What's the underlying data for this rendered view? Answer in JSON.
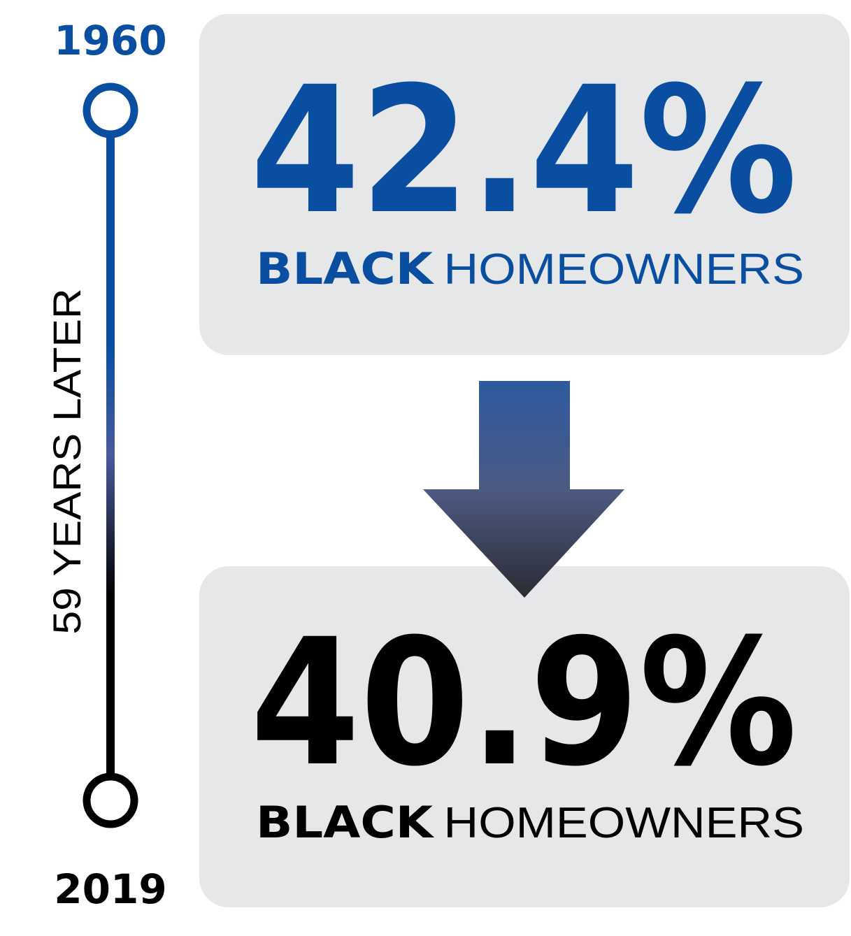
{
  "timeline": {
    "start": "1960",
    "end": "2019",
    "span": "59 YEARS LATER"
  },
  "panels": [
    {
      "value": "42.4%",
      "emphasis": "BLACK",
      "label": "HOMEOWNERS"
    },
    {
      "value": "40.9%",
      "emphasis": "BLACK",
      "label": "HOMEOWNERS"
    }
  ]
}
